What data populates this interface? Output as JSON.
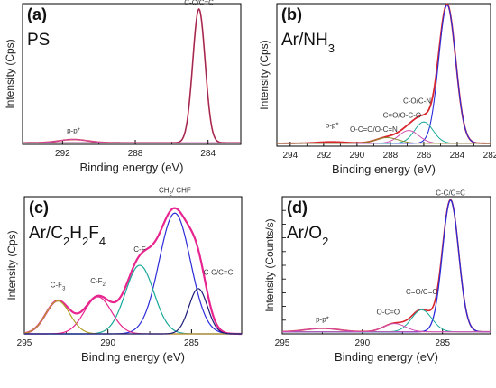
{
  "figure": {
    "type": "xps-panel-grid"
  },
  "chart_data": [
    {
      "type": "line",
      "panel_label": "(a)",
      "sample_label": "PS",
      "sample_sub": [],
      "xlabel": "Binding energy (eV)",
      "ylabel": "Intensity (Cps)",
      "xlim": [
        294.2,
        282.2
      ],
      "xticks": [
        292,
        288,
        284
      ],
      "ylim": [
        0,
        100
      ],
      "show_yticks": false,
      "series": [
        {
          "color": "#d9262e",
          "width": 1.6,
          "peaks": [
            {
              "center": 284.5,
              "amp": 95,
              "fwhm": 0.8
            },
            {
              "center": 291.4,
              "amp": 2.3,
              "fwhm": 1.8
            }
          ],
          "baseline": 1.2
        },
        {
          "color": "#8a2c6a",
          "width": 0.9,
          "peaks": [
            {
              "center": 284.5,
              "amp": 95,
              "fwhm": 0.8
            }
          ],
          "baseline": 1.2
        },
        {
          "color": "#d04fb3",
          "width": 0.9,
          "peaks": [
            {
              "center": 291.4,
              "amp": 2.3,
              "fwhm": 1.8
            }
          ],
          "baseline": 1.2
        }
      ],
      "annotations": [
        {
          "text": "C-C/C=C",
          "x": 284.5,
          "y": 99
        },
        {
          "text": "p-p*",
          "x": 291.4,
          "y": 8
        }
      ]
    },
    {
      "type": "line",
      "panel_label": "(b)",
      "sample_label": "Ar/NH",
      "sample_sub": [
        "3"
      ],
      "xlabel": "Binding energy (eV)",
      "ylabel": "Intensity (Cps)",
      "xlim": [
        294.8,
        282
      ],
      "xticks": [
        294,
        292,
        290,
        288,
        286,
        284,
        282
      ],
      "ylim": [
        0,
        100
      ],
      "show_yticks": false,
      "series": [
        {
          "color": "#d9262e",
          "width": 1.8,
          "peaks": [
            {
              "center": 284.6,
              "amp": 97,
              "fwhm": 1.2
            },
            {
              "center": 286.0,
              "amp": 15,
              "fwhm": 1.3
            },
            {
              "center": 286.9,
              "amp": 9,
              "fwhm": 1.4
            },
            {
              "center": 288.2,
              "amp": 4,
              "fwhm": 1.6
            },
            {
              "center": 291.5,
              "amp": 1,
              "fwhm": 2.0
            }
          ],
          "baseline": 2
        },
        {
          "color": "#2b2bd9",
          "width": 1.1,
          "peaks": [
            {
              "center": 284.6,
              "amp": 97,
              "fwhm": 1.2
            }
          ],
          "baseline": 2
        },
        {
          "color": "#1aa89a",
          "width": 1.0,
          "peaks": [
            {
              "center": 286.0,
              "amp": 15,
              "fwhm": 1.3
            }
          ],
          "baseline": 2
        },
        {
          "color": "#d04fb3",
          "width": 1.0,
          "peaks": [
            {
              "center": 286.9,
              "amp": 9,
              "fwhm": 1.4
            }
          ],
          "baseline": 2
        },
        {
          "color": "#8a8a2a",
          "width": 1.0,
          "peaks": [
            {
              "center": 288.2,
              "amp": 4,
              "fwhm": 1.6
            }
          ],
          "baseline": 2
        }
      ],
      "annotations": [
        {
          "text": "C-C/C=C",
          "x": 284.6,
          "y": 103
        },
        {
          "text": "C-O/C-N",
          "x": 286.4,
          "y": 30
        },
        {
          "text": "C=O/O-C-O",
          "x": 287.3,
          "y": 20
        },
        {
          "text": "O-C=O/O-C=N",
          "x": 289.0,
          "y": 10
        },
        {
          "text": "p-p*",
          "x": 291.5,
          "y": 13
        }
      ]
    },
    {
      "type": "line",
      "panel_label": "(c)",
      "sample_label": "Ar/C",
      "sample_sub": [
        "2",
        "H",
        "2",
        "F",
        "4"
      ],
      "xlabel": "Binding energy (eV)",
      "ylabel": "Intensity (Cps)",
      "xlim": [
        295,
        282
      ],
      "xticks": [
        295,
        290,
        285
      ],
      "ylim": [
        0,
        100
      ],
      "show_yticks": false,
      "series": [
        {
          "color": "#e8258f",
          "width": 2.2,
          "peaks": [
            {
              "center": 293.0,
              "amp": 24,
              "fwhm": 1.7
            },
            {
              "center": 290.6,
              "amp": 27,
              "fwhm": 1.9
            },
            {
              "center": 288.1,
              "amp": 50,
              "fwhm": 2.0
            },
            {
              "center": 286.0,
              "amp": 88,
              "fwhm": 2.2
            },
            {
              "center": 284.6,
              "amp": 33,
              "fwhm": 1.3
            }
          ],
          "baseline": 0
        },
        {
          "color": "#2b2bd9",
          "width": 1.2,
          "peaks": [
            {
              "center": 286.0,
              "amp": 88,
              "fwhm": 2.2
            }
          ],
          "baseline": 0
        },
        {
          "color": "#1aa89a",
          "width": 1.2,
          "peaks": [
            {
              "center": 288.1,
              "amp": 50,
              "fwhm": 2.0
            }
          ],
          "baseline": 0
        },
        {
          "color": "#e8258f",
          "width": 1.2,
          "peaks": [
            {
              "center": 290.6,
              "amp": 27,
              "fwhm": 1.9
            }
          ],
          "baseline": 0
        },
        {
          "color": "#b0a02a",
          "width": 1.2,
          "peaks": [
            {
              "center": 293.0,
              "amp": 24,
              "fwhm": 1.7
            }
          ],
          "baseline": 0
        },
        {
          "color": "#1c1c7a",
          "width": 1.2,
          "peaks": [
            {
              "center": 284.6,
              "amp": 33,
              "fwhm": 1.3
            }
          ],
          "baseline": 0
        }
      ],
      "annotations": [
        {
          "text": "CH",
          "sub": "2",
          "tail": "/ CHF",
          "x": 286.0,
          "y": 103
        },
        {
          "text": "C-F",
          "x": 288.1,
          "y": 60
        },
        {
          "text": "C-F",
          "sub": "2",
          "x": 290.6,
          "y": 37
        },
        {
          "text": "C-F",
          "sub": "3",
          "x": 293.0,
          "y": 34
        },
        {
          "text": "C-C/C=C",
          "x": 283.4,
          "y": 43
        }
      ]
    },
    {
      "type": "line",
      "panel_label": "(d)",
      "sample_label": "Ar/O",
      "sample_sub": [
        "2"
      ],
      "xlabel": "Binding energy (eV)",
      "ylabel": "Intensity (Counts/s)",
      "xlim": [
        295,
        282
      ],
      "xticks": [
        295,
        290,
        285
      ],
      "ylim": [
        0,
        100
      ],
      "show_yticks": true,
      "series": [
        {
          "color": "#d9262e",
          "width": 1.6,
          "peaks": [
            {
              "center": 284.5,
              "amp": 96,
              "fwhm": 1.2
            },
            {
              "center": 286.3,
              "amp": 16,
              "fwhm": 1.5
            },
            {
              "center": 288.0,
              "amp": 6,
              "fwhm": 1.6
            },
            {
              "center": 292.5,
              "amp": 2.5,
              "fwhm": 2.5
            }
          ],
          "baseline": 1.5
        },
        {
          "color": "#2b2bd9",
          "width": 1.3,
          "peaks": [
            {
              "center": 284.5,
              "amp": 96,
              "fwhm": 1.2
            }
          ],
          "baseline": 1.5
        },
        {
          "color": "#1aa89a",
          "width": 1.0,
          "peaks": [
            {
              "center": 286.3,
              "amp": 16,
              "fwhm": 1.5
            }
          ],
          "baseline": 1.5
        },
        {
          "color": "#d04fb3",
          "width": 1.0,
          "peaks": [
            {
              "center": 288.0,
              "amp": 6,
              "fwhm": 1.6
            }
          ],
          "baseline": 1.5
        },
        {
          "color": "#d04fb3",
          "width": 0.9,
          "peaks": [
            {
              "center": 292.5,
              "amp": 2.5,
              "fwhm": 2.5
            }
          ],
          "baseline": 1.5
        }
      ],
      "annotations": [
        {
          "text": "C-C/C=C",
          "x": 284.5,
          "y": 101
        },
        {
          "text": "C=O/C=C",
          "x": 286.3,
          "y": 29
        },
        {
          "text": "O-C=O",
          "x": 288.4,
          "y": 14
        },
        {
          "text": "p-p*",
          "x": 292.5,
          "y": 9
        }
      ]
    }
  ]
}
